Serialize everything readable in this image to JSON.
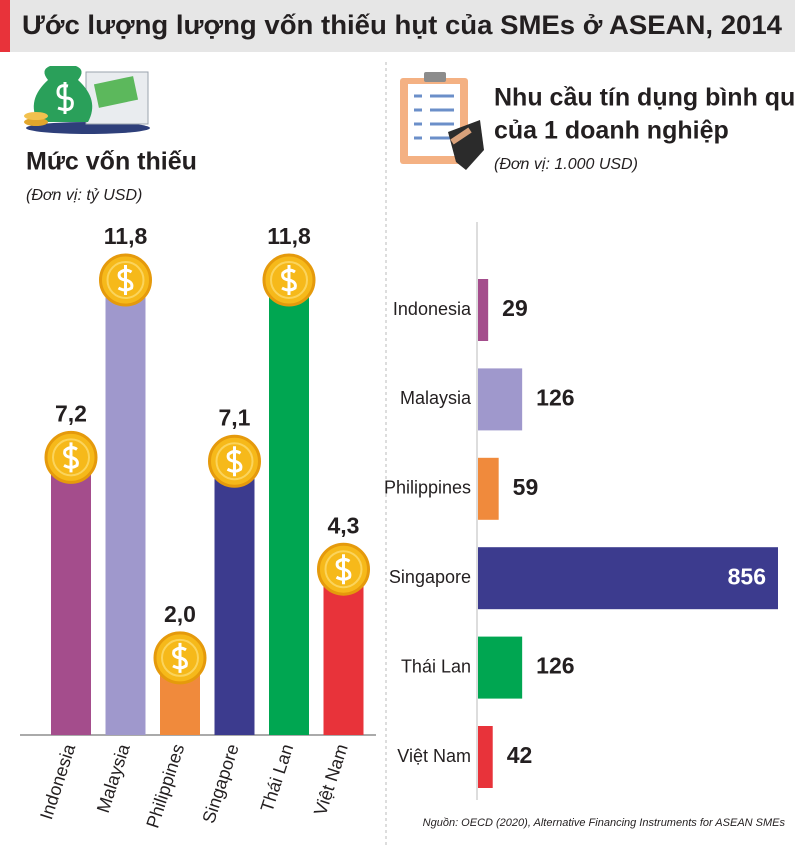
{
  "header": {
    "title": "Ước lượng lượng vốn thiếu hụt của SMEs ở ASEAN, 2014"
  },
  "chart_data": [
    {
      "type": "bar",
      "title": "Mức vốn thiếu",
      "subtitle": "(Đơn vị:  tỷ USD)",
      "categories": [
        "Indonesia",
        "Malaysia",
        "Philippines",
        "Singapore",
        "Thái Lan",
        "Việt Nam"
      ],
      "values": [
        7.2,
        11.8,
        2.0,
        7.1,
        11.8,
        4.3
      ],
      "value_labels": [
        "7,2",
        "11,8",
        "2,0",
        "7,1",
        "11,8",
        "4,3"
      ],
      "colors": [
        "#a44d8c",
        "#9f98cc",
        "#f08a3c",
        "#3c3b8e",
        "#00a651",
        "#e8333a"
      ]
    },
    {
      "type": "barh",
      "title": [
        "Nhu cầu tín dụng bình quân",
        "của 1 doanh nghiệp"
      ],
      "subtitle": "(Đơn vị: 1.000 USD)",
      "categories": [
        "Indonesia",
        "Malaysia",
        "Philippines",
        "Singapore",
        "Thái Lan",
        "Việt Nam"
      ],
      "values": [
        29,
        126,
        59,
        856,
        126,
        42
      ],
      "colors": [
        "#a44d8c",
        "#9f98cc",
        "#f08a3c",
        "#3c3b8e",
        "#00a651",
        "#e8333a"
      ]
    }
  ],
  "source": "Nguồn: OECD (2020), Alternative Financing Instruments for ASEAN SMEs"
}
